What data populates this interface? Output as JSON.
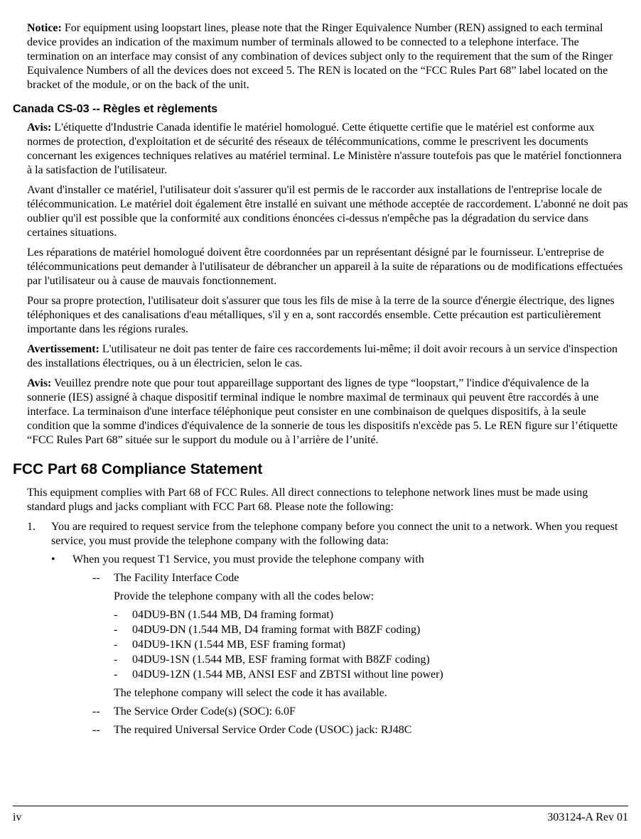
{
  "colors": {
    "text": "#000000",
    "background": "#ffffff",
    "rule": "#000000"
  },
  "fonts": {
    "body": "Times New Roman",
    "heading": "Helvetica",
    "body_size_pt": 12,
    "h1_size_pt": 16,
    "h2_size_pt": 12
  },
  "notice": {
    "label": "Notice:",
    "text": " For equipment using loopstart lines, please note that the Ringer Equivalence Number (REN) assigned to each terminal device provides an indication of the maximum number of terminals allowed to be connected to a telephone interface. The termination on an interface may consist of any combination of devices subject only to the requirement that the sum of the Ringer Equivalence Numbers of all the devices does not exceed 5. The REN is located on the “FCC Rules Part 68” label located on the bracket of the module, or on the back of the unit."
  },
  "cs03": {
    "heading": "Canada CS-03 -- Règles et règlements",
    "avis_label": "Avis:",
    "avis_text": " L'étiquette d'Industrie Canada identifie le matériel homologué. Cette étiquette certifie que le matériel est conforme aux normes de protection, d'exploitation et de sécurité des réseaux de télécommunications, comme le prescrivent les documents concernant les exigences techniques relatives au matériel terminal. Le Ministère n'assure toutefois pas que le matériel fonctionnera à la satisfaction de l'utilisateur.",
    "p2": "Avant d'installer ce matériel, l'utilisateur doit s'assurer qu'il est permis de le raccorder aux installations de l'entreprise locale de télécommunication. Le matériel doit également être installé en suivant une méthode acceptée de raccordement. L'abonné ne doit pas oublier qu'il est possible que la conformité aux conditions énoncées ci-dessus n'empêche pas la dégradation du service dans certaines situations.",
    "p3": "Les réparations de matériel homologué doivent être coordonnées par un représentant désigné par le fournisseur. L'entreprise de télécommunications peut demander à l'utilisateur de débrancher un appareil à la suite de réparations ou de modifications effectuées par l'utilisateur ou à cause de mauvais fonctionnement.",
    "p4": "Pour sa propre protection, l'utilisateur doit s'assurer que tous les fils de mise à la terre de la source d'énergie électrique, des lignes téléphoniques et des canalisations d'eau métalliques, s'il y en a, sont raccordés ensemble. Cette précaution est particulièrement importante dans les régions rurales.",
    "avert_label": "Avertissement:",
    "avert_text": "  L'utilisateur ne doit pas tenter de faire ces raccordements lui-même; il doit avoir recours à un service d'inspection des installations électriques, ou à un électricien, selon le cas.",
    "avis2_label": "Avis:",
    "avis2_text": " Veuillez prendre note que pour tout appareillage supportant des lignes de type “loopstart,” l'indice d'équivalence de la sonnerie (IES) assigné à chaque dispositif terminal indique le nombre maximal de terminaux qui peuvent être raccordés à une interface. La terminaison d'une interface téléphonique peut consister en une combinaison de quelques dispositifs, à la seule condition que la somme d'indices d'équivalence de la sonnerie de tous les dispositifs n'excède pas 5. Le REN figure sur l’étiquette “FCC Rules Part 68” située sur le support du module ou à l’arrière de l’unité."
  },
  "fcc": {
    "heading": "FCC Part 68 Compliance Statement",
    "intro": "This equipment complies with Part 68 of FCC Rules. All direct connections to telephone network lines must be made using standard plugs and jacks compliant with FCC Part 68. Please note the following:",
    "item1_idx": "1.",
    "item1_text": "You are required to request service from the telephone company before you connect the unit to a network. When you request service, you must provide the telephone company with the following data:",
    "bullet_mark": "•",
    "bullet_text": "When you request T1 Service, you must provide the telephone company with",
    "dash_mark": "--",
    "dash1": "The Facility Interface Code",
    "provide_line": "Provide the telephone company with all the codes below:",
    "sub_mark": "-",
    "codes": [
      "04DU9-BN (1.544 MB, D4 framing format)",
      "04DU9-DN (1.544 MB, D4 framing format with B8ZF coding)",
      "04DU9-1KN (1.544 MB, ESF framing format)",
      "04DU9-1SN (1.544 MB, ESF framing format with B8ZF coding)",
      "04DU9-1ZN (1.544 MB, ANSI ESF and ZBTSI without line power)"
    ],
    "after_codes": "The telephone company will select the code it has available.",
    "dash2": "The Service Order Code(s) (SOC): 6.0F",
    "dash3": "The required Universal Service Order Code (USOC) jack: RJ48C"
  },
  "footer": {
    "left": "iv",
    "right": "303124-A Rev 01"
  }
}
